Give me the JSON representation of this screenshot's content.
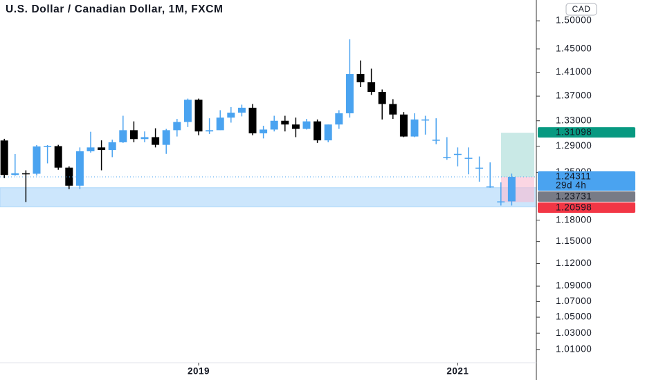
{
  "chart_data": {
    "type": "candlestick",
    "title": "U.S. Dollar / Canadian Dollar, 1M, FXCM",
    "currency": "CAD",
    "log_scale": true,
    "up_color": "#4aa3f0",
    "down_color": "#000000",
    "categories": [
      null,
      null,
      null,
      null,
      null,
      null,
      null,
      null,
      null,
      null,
      null,
      null,
      null,
      null,
      null,
      null,
      null,
      null,
      "2019",
      null,
      null,
      null,
      null,
      null,
      null,
      null,
      null,
      null,
      null,
      null,
      null,
      null,
      null,
      null,
      null,
      null,
      null,
      null,
      null,
      null,
      null,
      null,
      "2021",
      null,
      null,
      null,
      null,
      null
    ],
    "open": [
      1.2988,
      1.246,
      1.2485,
      1.2478,
      1.2895,
      1.29,
      1.257,
      1.23,
      1.282,
      1.288,
      1.284,
      1.296,
      1.315,
      1.301,
      1.304,
      1.292,
      1.315,
      1.328,
      1.364,
      1.313,
      1.315,
      1.335,
      1.343,
      1.351,
      1.31,
      1.316,
      1.33,
      1.324,
      1.317,
      1.329,
      1.299,
      1.324,
      1.342,
      1.407,
      1.393,
      1.377,
      1.357,
      1.34,
      1.305,
      1.332,
      1.3,
      1.273,
      1.278,
      1.272,
      1.257,
      1.229,
      1.207,
      1.207
    ],
    "high": [
      1.3014,
      1.2777,
      1.253,
      1.2916,
      1.2916,
      1.292,
      1.259,
      1.288,
      1.3125,
      1.299,
      1.3,
      1.338,
      1.329,
      1.313,
      1.318,
      1.317,
      1.333,
      1.366,
      1.366,
      1.334,
      1.347,
      1.352,
      1.356,
      1.357,
      1.322,
      1.338,
      1.338,
      1.335,
      1.333,
      1.332,
      1.324,
      1.347,
      1.467,
      1.43,
      1.416,
      1.381,
      1.365,
      1.344,
      1.342,
      1.338,
      1.334,
      1.304,
      1.288,
      1.288,
      1.274,
      1.265,
      1.235,
      1.248
    ],
    "low": [
      1.2413,
      1.2448,
      1.2061,
      1.2451,
      1.2635,
      1.2538,
      1.2249,
      1.225,
      1.28,
      1.253,
      1.273,
      1.295,
      1.296,
      1.296,
      1.288,
      1.278,
      1.305,
      1.32,
      1.307,
      1.309,
      1.315,
      1.327,
      1.337,
      1.307,
      1.302,
      1.313,
      1.313,
      1.304,
      1.316,
      1.295,
      1.296,
      1.317,
      1.335,
      1.385,
      1.372,
      1.332,
      1.333,
      1.304,
      1.304,
      1.308,
      1.293,
      1.269,
      1.259,
      1.247,
      1.236,
      1.227,
      1.201,
      1.201
    ],
    "close": [
      1.246,
      1.2485,
      1.2478,
      1.2895,
      1.29,
      1.257,
      1.23,
      1.282,
      1.288,
      1.284,
      1.296,
      1.315,
      1.301,
      1.304,
      1.292,
      1.315,
      1.328,
      1.364,
      1.313,
      1.315,
      1.335,
      1.343,
      1.351,
      1.31,
      1.316,
      1.33,
      1.324,
      1.317,
      1.329,
      1.299,
      1.324,
      1.342,
      1.407,
      1.393,
      1.377,
      1.357,
      1.34,
      1.305,
      1.332,
      1.332,
      1.3,
      1.273,
      1.278,
      1.272,
      1.257,
      1.229,
      1.207,
      1.2431
    ],
    "ylim": [
      0.994,
      1.538
    ],
    "yticks": [
      {
        "value": 1.01,
        "label": "1.01000"
      },
      {
        "value": 1.03,
        "label": "1.03000"
      },
      {
        "value": 1.05,
        "label": "1.05000"
      },
      {
        "value": 1.07,
        "label": "1.07000"
      },
      {
        "value": 1.09,
        "label": "1.09000"
      },
      {
        "value": 1.12,
        "label": "1.12000"
      },
      {
        "value": 1.15,
        "label": "1.15000"
      },
      {
        "value": 1.18,
        "label": "1.18000"
      },
      {
        "value": 1.25,
        "label": "1.25000"
      },
      {
        "value": 1.29,
        "label": "1.29000"
      },
      {
        "value": 1.33,
        "label": "1.33000"
      },
      {
        "value": 1.37,
        "label": "1.37000"
      },
      {
        "value": 1.41,
        "label": "1.41000"
      },
      {
        "value": 1.45,
        "label": "1.45000"
      },
      {
        "value": 1.5,
        "label": "1.50000"
      }
    ],
    "zone": [
      1.199,
      1.227
    ],
    "position": {
      "target": 1.31098,
      "entry": 1.24311,
      "stop": 1.20598
    },
    "last_price": 1.24311,
    "countdown": "29d 4h",
    "price_marker": 1.23731
  }
}
